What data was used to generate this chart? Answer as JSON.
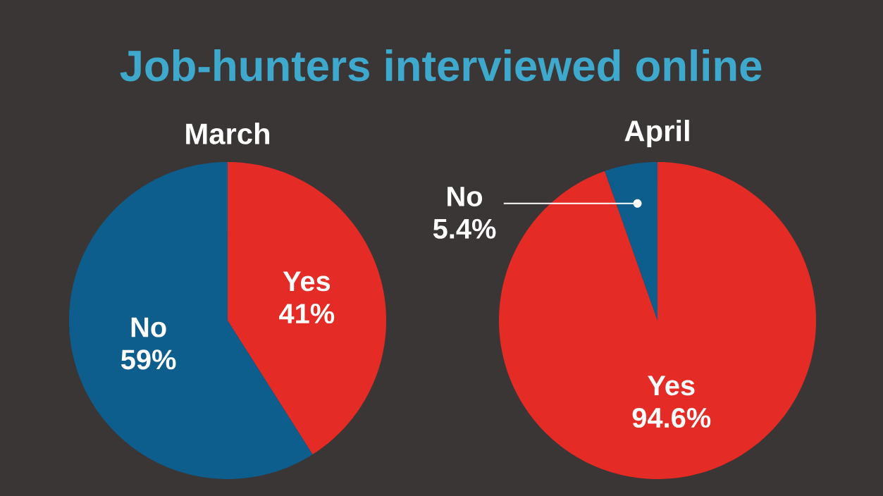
{
  "chart_data": [
    {
      "type": "pie",
      "title": "Job-hunters interviewed online",
      "subtitle": "March",
      "categories": [
        "Yes",
        "No"
      ],
      "values": [
        41,
        59
      ],
      "colors": [
        "#e52b25",
        "#0d5e8c"
      ],
      "value_labels": [
        "41%",
        "59%"
      ]
    },
    {
      "type": "pie",
      "subtitle": "April",
      "categories": [
        "Yes",
        "No"
      ],
      "values": [
        94.6,
        5.4
      ],
      "colors": [
        "#e52b25",
        "#0d5e8c"
      ],
      "value_labels": [
        "94.6%",
        "5.4%"
      ]
    }
  ]
}
